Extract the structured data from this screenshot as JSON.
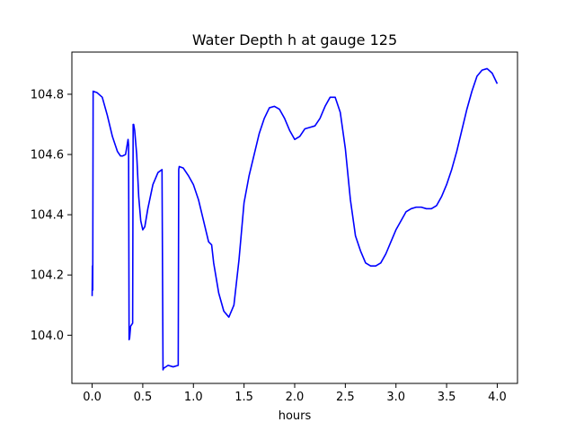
{
  "chart_data": {
    "type": "line",
    "title": "Water Depth h at gauge 125",
    "xlabel": "hours",
    "ylabel": "",
    "xlim": [
      -0.2,
      4.2
    ],
    "ylim": [
      103.84,
      104.94
    ],
    "xticks": [
      0.0,
      0.5,
      1.0,
      1.5,
      2.0,
      2.5,
      3.0,
      3.5,
      4.0
    ],
    "xtick_labels": [
      "0.0",
      "0.5",
      "1.0",
      "1.5",
      "2.0",
      "2.5",
      "3.0",
      "3.5",
      "4.0"
    ],
    "yticks": [
      104.0,
      104.2,
      104.4,
      104.6,
      104.8
    ],
    "ytick_labels": [
      "104.0",
      "104.2",
      "104.4",
      "104.6",
      "104.8"
    ],
    "grid": false,
    "series": [
      {
        "color": "#0000ff",
        "x": [
          0.0,
          0.003,
          0.006,
          0.01,
          0.05,
          0.1,
          0.15,
          0.2,
          0.25,
          0.28,
          0.3,
          0.33,
          0.355,
          0.36,
          0.365,
          0.37,
          0.38,
          0.4,
          0.405,
          0.41,
          0.42,
          0.44,
          0.46,
          0.48,
          0.5,
          0.52,
          0.55,
          0.6,
          0.65,
          0.69,
          0.7,
          0.705,
          0.75,
          0.8,
          0.85,
          0.855,
          0.86,
          0.9,
          0.95,
          1.0,
          1.05,
          1.1,
          1.15,
          1.18,
          1.2,
          1.25,
          1.3,
          1.35,
          1.4,
          1.45,
          1.5,
          1.55,
          1.6,
          1.65,
          1.7,
          1.75,
          1.8,
          1.85,
          1.9,
          1.95,
          2.0,
          2.05,
          2.1,
          2.15,
          2.2,
          2.25,
          2.3,
          2.35,
          2.4,
          2.45,
          2.5,
          2.55,
          2.6,
          2.65,
          2.7,
          2.75,
          2.8,
          2.85,
          2.9,
          2.95,
          3.0,
          3.05,
          3.1,
          3.15,
          3.2,
          3.25,
          3.3,
          3.35,
          3.4,
          3.45,
          3.5,
          3.55,
          3.6,
          3.65,
          3.7,
          3.75,
          3.8,
          3.85,
          3.9,
          3.95,
          4.0
        ],
        "y": [
          104.13,
          104.23,
          104.15,
          104.81,
          104.805,
          104.79,
          104.73,
          104.66,
          104.61,
          104.595,
          104.595,
          104.6,
          104.65,
          104.63,
          103.985,
          103.99,
          104.03,
          104.04,
          104.7,
          104.7,
          104.68,
          104.6,
          104.46,
          104.38,
          104.35,
          104.36,
          104.42,
          104.5,
          104.54,
          104.55,
          103.885,
          103.89,
          103.9,
          103.895,
          103.9,
          104.55,
          104.56,
          104.555,
          104.53,
          104.5,
          104.45,
          104.38,
          104.31,
          104.3,
          104.24,
          104.14,
          104.08,
          104.06,
          104.1,
          104.25,
          104.44,
          104.53,
          104.6,
          104.67,
          104.72,
          104.755,
          104.76,
          104.75,
          104.72,
          104.68,
          104.65,
          104.66,
          104.685,
          104.69,
          104.695,
          104.72,
          104.76,
          104.79,
          104.79,
          104.74,
          104.62,
          104.45,
          104.33,
          104.28,
          104.24,
          104.23,
          104.23,
          104.24,
          104.27,
          104.31,
          104.35,
          104.38,
          104.41,
          104.42,
          104.425,
          104.425,
          104.42,
          104.42,
          104.43,
          104.46,
          104.5,
          104.55,
          104.61,
          104.68,
          104.75,
          104.81,
          104.86,
          104.88,
          104.885,
          104.87,
          104.835
        ]
      }
    ]
  }
}
